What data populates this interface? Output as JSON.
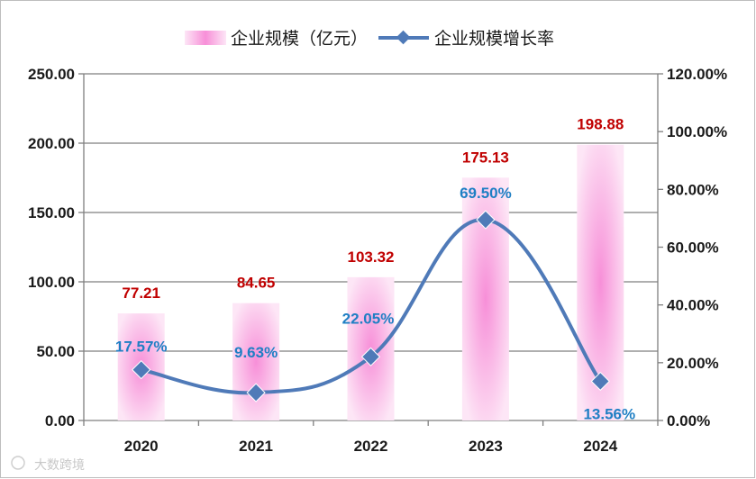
{
  "chart_data": {
    "type": "bar",
    "categories": [
      "2020",
      "2021",
      "2022",
      "2023",
      "2024"
    ],
    "series": [
      {
        "name": "企业规模（亿元）",
        "type": "bar",
        "axis": "left",
        "values": [
          77.21,
          84.65,
          103.32,
          175.13,
          198.88
        ],
        "labels": [
          "77.21",
          "84.65",
          "103.32",
          "175.13",
          "198.88"
        ]
      },
      {
        "name": "企业规模增长率",
        "type": "line",
        "axis": "right",
        "values": [
          17.57,
          9.63,
          22.05,
          69.5,
          13.56
        ],
        "labels": [
          "17.57%",
          "9.63%",
          "22.05%",
          "69.50%",
          "13.56%"
        ]
      }
    ],
    "y_left": {
      "min": 0,
      "max": 250,
      "ticks": [
        "0.00",
        "50.00",
        "100.00",
        "150.00",
        "200.00",
        "250.00"
      ]
    },
    "y_right": {
      "min": 0,
      "max": 120,
      "ticks": [
        "0.00%",
        "20.00%",
        "40.00%",
        "60.00%",
        "80.00%",
        "100.00%",
        "120.00%"
      ]
    },
    "grid": true,
    "legend_position": "top-center",
    "colors": {
      "bar": "#f78fd8",
      "bar_light": "#fde6f6",
      "line": "#4f7ab8",
      "bar_label": "#c00000",
      "pct_label": "#1f7fc4",
      "grid": "#7f7f7f"
    }
  },
  "watermark": {
    "text": "大数跨境"
  }
}
